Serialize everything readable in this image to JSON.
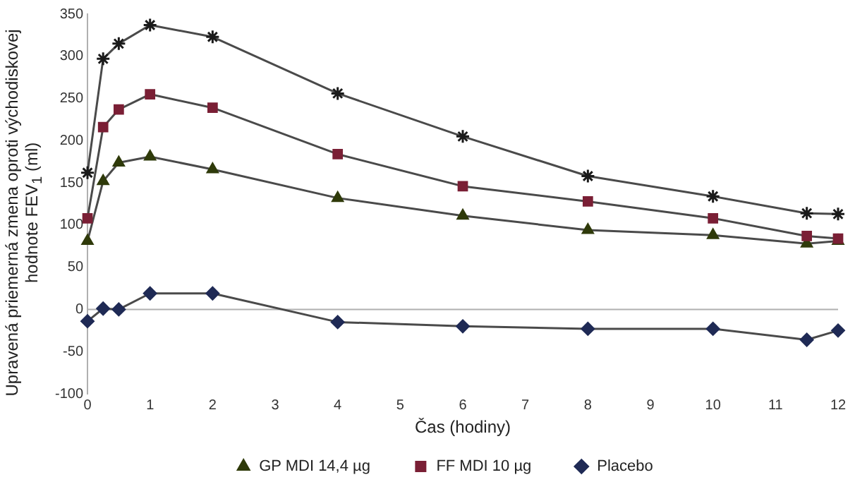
{
  "chart_data": {
    "type": "line",
    "xlabel": "Čas (hodiny)",
    "ylabel": "Upravená priemerná zmena oproti východiskovej hodnote FEV$_{1}$ (ml)",
    "x": [
      0,
      0.25,
      0.5,
      1,
      2,
      4,
      6,
      8,
      10,
      11.5,
      12
    ],
    "xlim": [
      0,
      12
    ],
    "xticks": [
      0,
      1,
      2,
      3,
      4,
      5,
      6,
      7,
      8,
      9,
      10,
      11,
      12
    ],
    "ylim": [
      -100,
      350
    ],
    "yticks": [
      -100,
      -50,
      0,
      50,
      100,
      150,
      200,
      250,
      300,
      350
    ],
    "grid": false,
    "legend": "bottom",
    "ref_lines": [
      {
        "axis": "y",
        "value": 0,
        "color": "#b0b0b0"
      }
    ],
    "series": [
      {
        "color": "#1a1a1a",
        "marker": "cross",
        "values": [
          162,
          297,
          315,
          337,
          323,
          256,
          205,
          158,
          134,
          114,
          113
        ]
      },
      {
        "name": "GP MDI 14,4 µg",
        "color": "#2f3a0a",
        "marker": "triangle",
        "values": [
          81,
          152,
          174,
          181,
          166,
          132,
          111,
          94,
          88,
          78,
          81
        ]
      },
      {
        "name": "FF MDI 10 µg",
        "color": "#7a1f35",
        "marker": "square",
        "values": [
          108,
          216,
          237,
          255,
          239,
          184,
          146,
          128,
          108,
          87,
          84
        ]
      },
      {
        "name": "Placebo",
        "color": "#1f2a55",
        "marker": "diamond",
        "values": [
          -14,
          1,
          0,
          19,
          19,
          -15,
          -20,
          -23,
          -23,
          -36,
          -25
        ]
      }
    ]
  }
}
